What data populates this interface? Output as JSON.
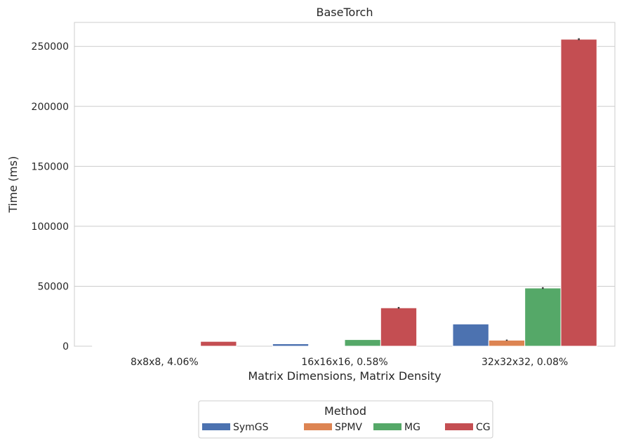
{
  "chart_data": {
    "type": "bar",
    "title": "BaseTorch",
    "xlabel": "Matrix Dimensions, Matrix Density",
    "ylabel": "Time (ms)",
    "categories": [
      "8x8x8, 4.06%",
      "16x16x16, 0.58%",
      "32x32x32, 0.08%"
    ],
    "series": [
      {
        "name": "SymGS",
        "color": "#4c72b0",
        "values": [
          300,
          2000,
          18500
        ],
        "errors": [
          0,
          0,
          0
        ]
      },
      {
        "name": "SPMV",
        "color": "#dd8452",
        "values": [
          40,
          300,
          5000
        ],
        "errors": [
          0,
          0,
          500
        ]
      },
      {
        "name": "MG",
        "color": "#55a868",
        "values": [
          500,
          5500,
          48500
        ],
        "errors": [
          0,
          0,
          700
        ]
      },
      {
        "name": "CG",
        "color": "#c44e52",
        "values": [
          4000,
          32000,
          256000
        ],
        "errors": [
          0,
          700,
          800
        ]
      }
    ],
    "yticks": [
      0,
      50000,
      100000,
      150000,
      200000,
      250000
    ],
    "ylim": [
      0,
      270000
    ],
    "grid": true,
    "legend": {
      "title": "Method",
      "placement": "bottom-center"
    }
  }
}
